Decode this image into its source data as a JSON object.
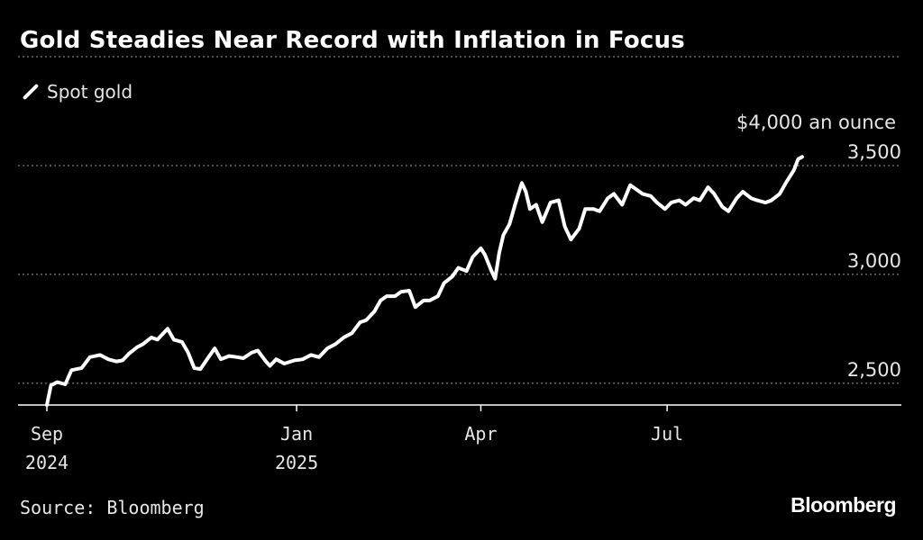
{
  "header": {
    "title": "Gold Steadies Near Record with Inflation in Focus"
  },
  "legend": {
    "series_label": "Spot gold"
  },
  "footer": {
    "source": "Source: Bloomberg",
    "logo_text": "Bloomberg"
  },
  "colors": {
    "background": "#000000",
    "line": "#ffffff",
    "grid": "#9a9a9a",
    "text": "#e6e6e6"
  },
  "chart_data": {
    "type": "line",
    "title": "Gold Steadies Near Record with Inflation in Focus",
    "ylabel": "$4,000 an ounce",
    "ylim": [
      2400,
      4000
    ],
    "yticks": [
      2500,
      3000,
      3500,
      4000
    ],
    "ytick_labels": [
      "2,500",
      "3,000",
      "3,500",
      "$4,000 an ounce"
    ],
    "xlim": [
      "2024-09-01",
      "2025-09-05"
    ],
    "xticks": [
      {
        "date": "2024-09-01",
        "label": "Sep",
        "sublabel": "2024"
      },
      {
        "date": "2025-01-01",
        "label": "Jan",
        "sublabel": "2025"
      },
      {
        "date": "2025-04-01",
        "label": "Apr",
        "sublabel": ""
      },
      {
        "date": "2025-07-01",
        "label": "Jul",
        "sublabel": ""
      }
    ],
    "grid": true,
    "legend_position": "top-left",
    "series": [
      {
        "name": "Spot gold",
        "points": [
          [
            "2024-09-01",
            2400
          ],
          [
            "2024-09-03",
            2490
          ],
          [
            "2024-09-06",
            2505
          ],
          [
            "2024-09-10",
            2495
          ],
          [
            "2024-09-13",
            2560
          ],
          [
            "2024-09-18",
            2570
          ],
          [
            "2024-09-22",
            2620
          ],
          [
            "2024-09-27",
            2630
          ],
          [
            "2024-10-01",
            2610
          ],
          [
            "2024-10-05",
            2600
          ],
          [
            "2024-10-08",
            2605
          ],
          [
            "2024-10-11",
            2635
          ],
          [
            "2024-10-15",
            2665
          ],
          [
            "2024-10-18",
            2680
          ],
          [
            "2024-10-22",
            2710
          ],
          [
            "2024-10-25",
            2700
          ],
          [
            "2024-10-30",
            2750
          ],
          [
            "2024-11-02",
            2700
          ],
          [
            "2024-11-06",
            2690
          ],
          [
            "2024-11-09",
            2640
          ],
          [
            "2024-11-12",
            2570
          ],
          [
            "2024-11-15",
            2565
          ],
          [
            "2024-11-19",
            2620
          ],
          [
            "2024-11-22",
            2660
          ],
          [
            "2024-11-25",
            2610
          ],
          [
            "2024-11-29",
            2625
          ],
          [
            "2024-12-03",
            2620
          ],
          [
            "2024-12-06",
            2615
          ],
          [
            "2024-12-10",
            2640
          ],
          [
            "2024-12-13",
            2650
          ],
          [
            "2024-12-17",
            2600
          ],
          [
            "2024-12-19",
            2580
          ],
          [
            "2024-12-22",
            2610
          ],
          [
            "2024-12-26",
            2590
          ],
          [
            "2024-12-31",
            2605
          ],
          [
            "2025-01-04",
            2610
          ],
          [
            "2025-01-08",
            2630
          ],
          [
            "2025-01-12",
            2620
          ],
          [
            "2025-01-16",
            2660
          ],
          [
            "2025-01-20",
            2680
          ],
          [
            "2025-01-24",
            2710
          ],
          [
            "2025-01-28",
            2730
          ],
          [
            "2025-02-01",
            2780
          ],
          [
            "2025-02-04",
            2790
          ],
          [
            "2025-02-08",
            2830
          ],
          [
            "2025-02-11",
            2880
          ],
          [
            "2025-02-14",
            2900
          ],
          [
            "2025-02-18",
            2900
          ],
          [
            "2025-02-21",
            2920
          ],
          [
            "2025-02-25",
            2925
          ],
          [
            "2025-02-28",
            2850
          ],
          [
            "2025-03-04",
            2880
          ],
          [
            "2025-03-07",
            2880
          ],
          [
            "2025-03-11",
            2900
          ],
          [
            "2025-03-14",
            2960
          ],
          [
            "2025-03-18",
            2990
          ],
          [
            "2025-03-21",
            3030
          ],
          [
            "2025-03-25",
            3015
          ],
          [
            "2025-03-28",
            3080
          ],
          [
            "2025-04-01",
            3120
          ],
          [
            "2025-04-03",
            3090
          ],
          [
            "2025-04-06",
            3020
          ],
          [
            "2025-04-08",
            2980
          ],
          [
            "2025-04-10",
            3100
          ],
          [
            "2025-04-12",
            3180
          ],
          [
            "2025-04-15",
            3230
          ],
          [
            "2025-04-18",
            3330
          ],
          [
            "2025-04-21",
            3420
          ],
          [
            "2025-04-23",
            3380
          ],
          [
            "2025-04-25",
            3300
          ],
          [
            "2025-04-28",
            3320
          ],
          [
            "2025-05-01",
            3240
          ],
          [
            "2025-05-05",
            3330
          ],
          [
            "2025-05-09",
            3340
          ],
          [
            "2025-05-12",
            3220
          ],
          [
            "2025-05-15",
            3160
          ],
          [
            "2025-05-19",
            3210
          ],
          [
            "2025-05-22",
            3300
          ],
          [
            "2025-05-26",
            3300
          ],
          [
            "2025-05-29",
            3290
          ],
          [
            "2025-06-02",
            3350
          ],
          [
            "2025-06-05",
            3370
          ],
          [
            "2025-06-09",
            3320
          ],
          [
            "2025-06-13",
            3410
          ],
          [
            "2025-06-16",
            3390
          ],
          [
            "2025-06-19",
            3370
          ],
          [
            "2025-06-23",
            3360
          ],
          [
            "2025-06-26",
            3330
          ],
          [
            "2025-06-30",
            3300
          ],
          [
            "2025-07-03",
            3330
          ],
          [
            "2025-07-07",
            3340
          ],
          [
            "2025-07-10",
            3320
          ],
          [
            "2025-07-14",
            3350
          ],
          [
            "2025-07-17",
            3340
          ],
          [
            "2025-07-21",
            3400
          ],
          [
            "2025-07-24",
            3370
          ],
          [
            "2025-07-28",
            3310
          ],
          [
            "2025-07-31",
            3290
          ],
          [
            "2025-08-04",
            3350
          ],
          [
            "2025-08-07",
            3380
          ],
          [
            "2025-08-11",
            3350
          ],
          [
            "2025-08-14",
            3340
          ],
          [
            "2025-08-18",
            3330
          ],
          [
            "2025-08-21",
            3340
          ],
          [
            "2025-08-25",
            3370
          ],
          [
            "2025-08-28",
            3420
          ],
          [
            "2025-09-01",
            3480
          ],
          [
            "2025-09-03",
            3530
          ],
          [
            "2025-09-05",
            3540
          ]
        ]
      }
    ]
  }
}
